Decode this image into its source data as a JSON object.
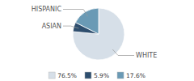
{
  "chart_data": {
    "type": "pie",
    "categories": [
      "WHITE",
      "ASIAN",
      "HISPANIC"
    ],
    "values": [
      76.5,
      5.9,
      17.6
    ],
    "value_labels": [
      "76.5%",
      "5.9%",
      "17.6%"
    ],
    "colors": [
      "#d6dfe8",
      "#2e4e6e",
      "#6a9ab5"
    ],
    "legend": "bottom"
  }
}
